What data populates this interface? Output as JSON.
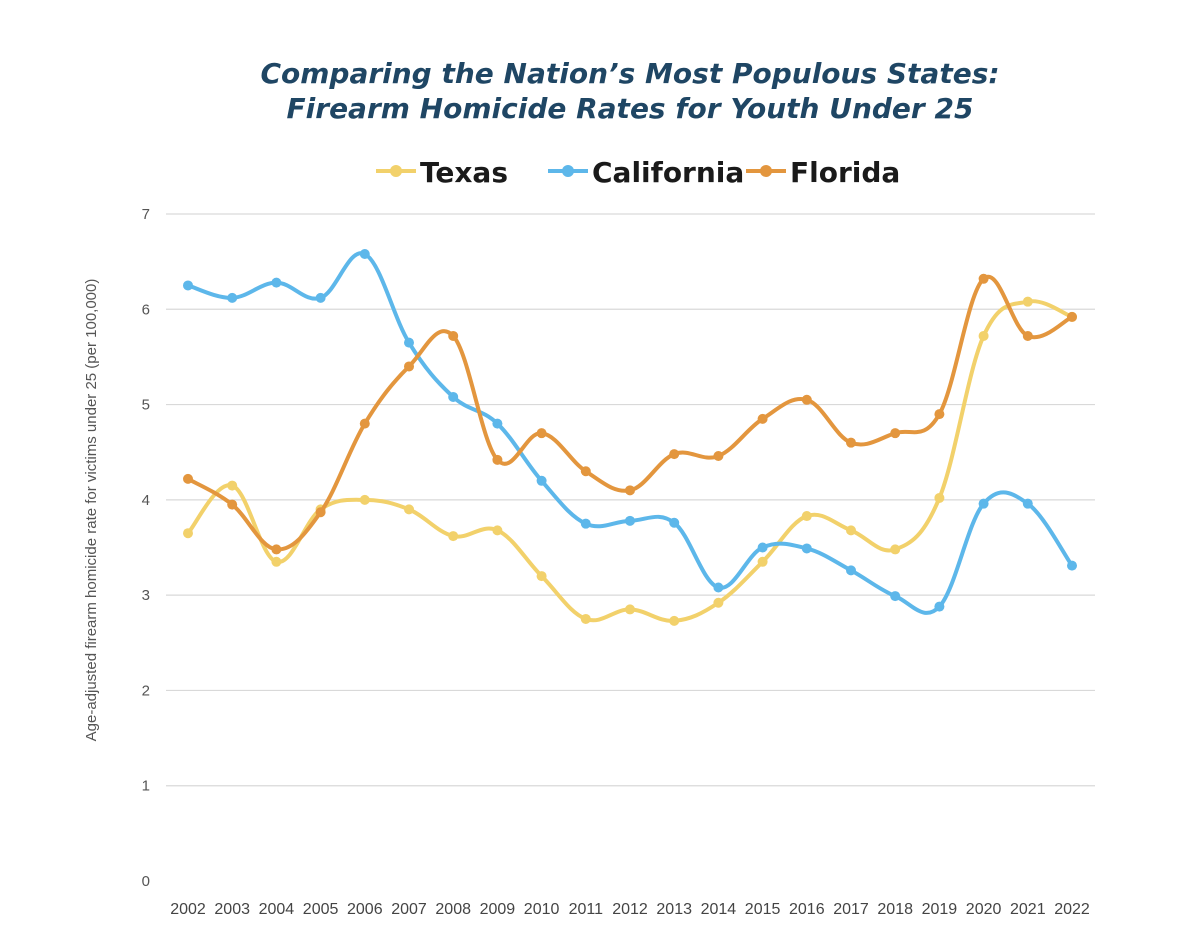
{
  "chart_data": {
    "type": "line",
    "title_line1": "Comparing the Nation’s Most Populous States:",
    "title_line2": "Firearm Homicide Rates for Youth Under 25",
    "ylabel": "Age-adjusted firearm homicide rate for victims under 25 (per 100,000)",
    "xlabel": "",
    "ylim": [
      0,
      7
    ],
    "yticks": [
      0,
      1,
      2,
      3,
      4,
      5,
      6,
      7
    ],
    "grid": true,
    "legend_position": "top-center",
    "x": [
      "2002",
      "2003",
      "2004",
      "2005",
      "2006",
      "2007",
      "2008",
      "2009",
      "2010",
      "2011",
      "2012",
      "2013",
      "2014",
      "2015",
      "2016",
      "2017",
      "2018",
      "2019",
      "2020",
      "2021",
      "2022"
    ],
    "series": [
      {
        "name": "Texas",
        "color": "#f2d16b",
        "values": [
          3.65,
          4.15,
          3.35,
          3.9,
          4.0,
          3.9,
          3.62,
          3.68,
          3.2,
          2.75,
          2.85,
          2.73,
          2.92,
          3.35,
          3.83,
          3.68,
          3.48,
          4.02,
          5.72,
          6.08,
          5.92
        ]
      },
      {
        "name": "California",
        "color": "#5db7ea",
        "values": [
          6.25,
          6.12,
          6.28,
          6.12,
          6.58,
          5.65,
          5.08,
          4.8,
          4.2,
          3.75,
          3.78,
          3.76,
          3.08,
          3.5,
          3.49,
          3.26,
          2.99,
          2.88,
          3.96,
          3.96,
          3.31
        ]
      },
      {
        "name": "Florida",
        "color": "#e3963e",
        "values": [
          4.22,
          3.95,
          3.48,
          3.87,
          4.8,
          5.4,
          5.72,
          4.42,
          4.7,
          4.3,
          4.1,
          4.48,
          4.46,
          4.85,
          5.05,
          4.6,
          4.7,
          4.9,
          6.32,
          5.72,
          5.92
        ]
      }
    ]
  }
}
